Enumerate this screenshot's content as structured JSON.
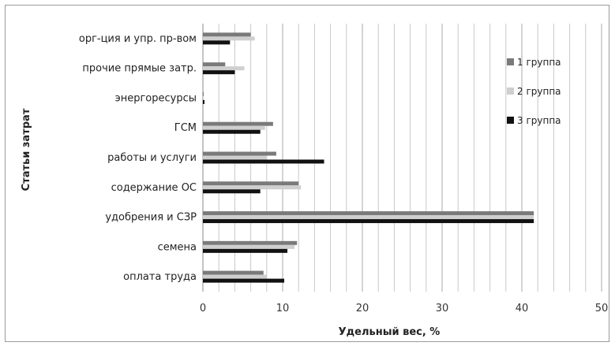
{
  "chart_data": {
    "type": "bar",
    "orientation": "horizontal",
    "xlabel": "Удельный вес, %",
    "ylabel": "Статьи затрат",
    "xlim": [
      0,
      50
    ],
    "xticks": [
      "0",
      "10",
      "20",
      "30",
      "40",
      "50"
    ],
    "grid": "vertical",
    "legend_position": "right",
    "categories": [
      "орг-ция и упр. пр-вом",
      "прочие прямые затр.",
      "энергоресурсы",
      "ГСМ",
      "работы и услуги",
      "содержание ОС",
      "удобрения и СЗР",
      "семена",
      "оплата труда"
    ],
    "series": [
      {
        "name": "1 группа",
        "color": "#7a7a7a",
        "values": [
          6.0,
          2.8,
          0.1,
          8.8,
          9.2,
          12.0,
          41.5,
          11.8,
          7.6
        ]
      },
      {
        "name": "2 группа",
        "color": "#cfcfcf",
        "values": [
          6.5,
          5.2,
          0.1,
          7.8,
          8.0,
          12.3,
          41.5,
          11.5,
          8.0
        ]
      },
      {
        "name": "3 группа",
        "color": "#111111",
        "values": [
          3.4,
          4.0,
          0.2,
          7.2,
          15.2,
          7.2,
          41.5,
          10.6,
          10.2
        ]
      }
    ]
  }
}
